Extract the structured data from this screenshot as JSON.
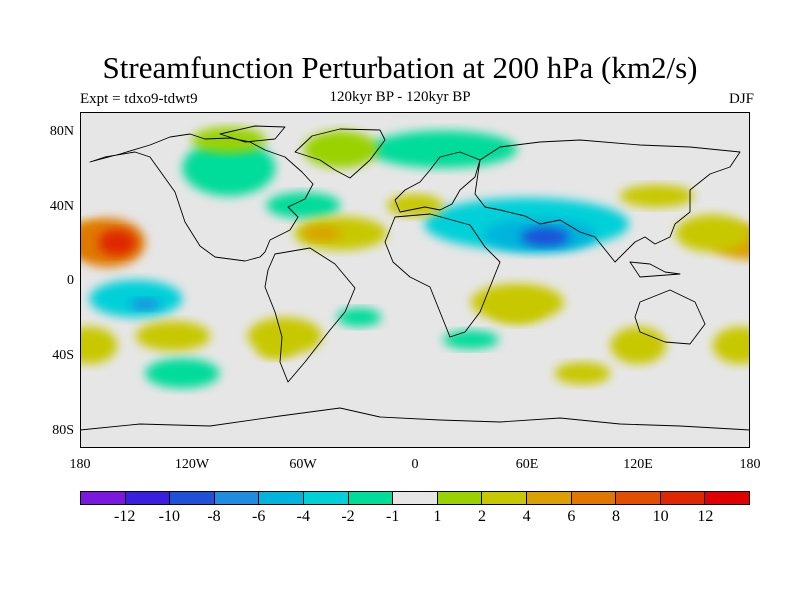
{
  "title": "Streamfunction Perturbation at 200 hPa (km2/s)",
  "experiment_label": "Expt = tdxo9-tdwt9",
  "period_label": "120kyr BP - 120kyr BP",
  "season_label": "DJF",
  "map": {
    "projection": "cylindrical-equidistant",
    "lon_range": [
      -180,
      180
    ],
    "lat_range": [
      -90,
      90
    ],
    "lat_ticks": [
      {
        "label": "80N",
        "lat": 80
      },
      {
        "label": "40N",
        "lat": 40
      },
      {
        "label": "0",
        "lat": 0
      },
      {
        "label": "40S",
        "lat": -40
      },
      {
        "label": "80S",
        "lat": -80
      }
    ],
    "lon_ticks": [
      {
        "label": "180",
        "lon": -180
      },
      {
        "label": "120W",
        "lon": -120
      },
      {
        "label": "60W",
        "lon": -60
      },
      {
        "label": "0",
        "lon": 0
      },
      {
        "label": "60E",
        "lon": 60
      },
      {
        "label": "120E",
        "lon": 120
      },
      {
        "label": "180",
        "lon": 180
      }
    ],
    "background_color": "#e6e6e6",
    "coastline_color": "#000000"
  },
  "colorbar": {
    "colors": [
      "#7a18e0",
      "#3b1fe0",
      "#1f50d8",
      "#1e8ce0",
      "#00b4dc",
      "#00d0d8",
      "#00dc9a",
      "#e6e6e6",
      "#9ad200",
      "#c8c800",
      "#dca000",
      "#e07800",
      "#e05000",
      "#e02800",
      "#e00000"
    ],
    "labels": [
      "-12",
      "-10",
      "-8",
      "-6",
      "-4",
      "-2",
      "-1",
      "1",
      "2",
      "4",
      "6",
      "8",
      "10",
      "12"
    ]
  },
  "chart_data": {
    "type": "heatmap",
    "title": "Streamfunction Perturbation at 200 hPa (km2/s)",
    "field_units": "km2/s",
    "contour_levels": [
      -12,
      -10,
      -8,
      -6,
      -4,
      -2,
      -1,
      1,
      2,
      4,
      6,
      8,
      10,
      12
    ],
    "anomalies": [
      {
        "lon": 60,
        "lat": 30,
        "rx": 55,
        "ry": 14,
        "value": -3
      },
      {
        "lon": 67,
        "lat": 24,
        "rx": 30,
        "ry": 9,
        "value": -6
      },
      {
        "lon": 70,
        "lat": 23,
        "rx": 13,
        "ry": 5,
        "value": -9
      },
      {
        "lon": 15,
        "lat": 70,
        "rx": 40,
        "ry": 10,
        "value": -1.5
      },
      {
        "lon": -60,
        "lat": 40,
        "rx": 20,
        "ry": 7,
        "value": -1.5
      },
      {
        "lon": -100,
        "lat": 60,
        "rx": 25,
        "ry": 15,
        "value": -1.5
      },
      {
        "lon": -150,
        "lat": -10,
        "rx": 25,
        "ry": 10,
        "value": -4
      },
      {
        "lon": -145,
        "lat": -13,
        "rx": 8,
        "ry": 3,
        "value": -7
      },
      {
        "lon": -125,
        "lat": -50,
        "rx": 20,
        "ry": 8,
        "value": -1.5
      },
      {
        "lon": -30,
        "lat": -20,
        "rx": 12,
        "ry": 5,
        "value": -1.5
      },
      {
        "lon": 30,
        "lat": -32,
        "rx": 15,
        "ry": 5,
        "value": -1.5
      },
      {
        "lon": -180,
        "lat": 22,
        "rx": 20,
        "ry": 9,
        "value": 5
      },
      {
        "lon": -165,
        "lat": 20,
        "rx": 20,
        "ry": 13,
        "value": 7
      },
      {
        "lon": -160,
        "lat": 20,
        "rx": 10,
        "ry": 7,
        "value": 10
      },
      {
        "lon": 180,
        "lat": 20,
        "rx": 20,
        "ry": 9,
        "value": 5
      },
      {
        "lon": -100,
        "lat": 75,
        "rx": 20,
        "ry": 7,
        "value": 1.5
      },
      {
        "lon": -40,
        "lat": 70,
        "rx": 20,
        "ry": 10,
        "value": 1.5
      },
      {
        "lon": -40,
        "lat": 25,
        "rx": 25,
        "ry": 9,
        "value": 3
      },
      {
        "lon": -50,
        "lat": 25,
        "rx": 10,
        "ry": 4,
        "value": 5
      },
      {
        "lon": 0,
        "lat": 40,
        "rx": 15,
        "ry": 6,
        "value": 2
      },
      {
        "lon": 130,
        "lat": 45,
        "rx": 20,
        "ry": 6,
        "value": 2
      },
      {
        "lon": 160,
        "lat": 25,
        "rx": 20,
        "ry": 10,
        "value": 2
      },
      {
        "lon": 55,
        "lat": -12,
        "rx": 25,
        "ry": 10,
        "value": 2
      },
      {
        "lon": 55,
        "lat": -15,
        "rx": 15,
        "ry": 8,
        "value": 3
      },
      {
        "lon": 120,
        "lat": -35,
        "rx": 15,
        "ry": 10,
        "value": 2
      },
      {
        "lon": 90,
        "lat": -50,
        "rx": 15,
        "ry": 6,
        "value": 2
      },
      {
        "lon": -130,
        "lat": -30,
        "rx": 20,
        "ry": 8,
        "value": 2
      },
      {
        "lon": -70,
        "lat": -30,
        "rx": 20,
        "ry": 10,
        "value": 2
      },
      {
        "lon": -75,
        "lat": -37,
        "rx": 10,
        "ry": 5,
        "value": 3
      },
      {
        "lon": -175,
        "lat": -35,
        "rx": 15,
        "ry": 10,
        "value": 2
      },
      {
        "lon": 175,
        "lat": -35,
        "rx": 15,
        "ry": 10,
        "value": 2
      }
    ]
  }
}
